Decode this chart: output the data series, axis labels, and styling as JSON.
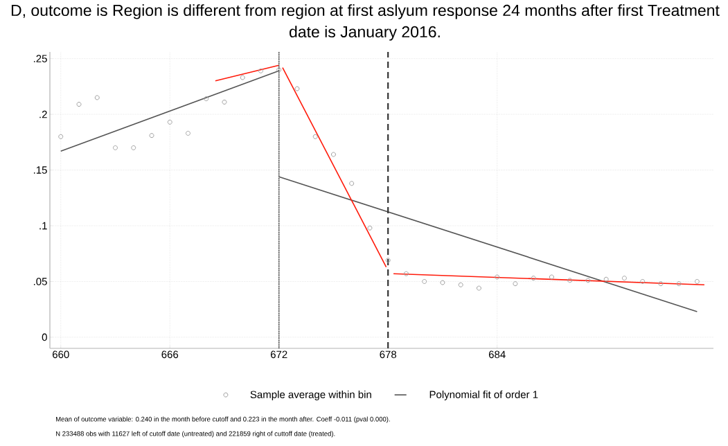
{
  "chart_data": {
    "type": "scatter",
    "title": "D, outcome is Region is different from region at first aslyum response 24 months after first Treatment date is January 2016.",
    "xlim": [
      659.4,
      695.9
    ],
    "ylim": [
      -0.01,
      0.256
    ],
    "xticks": [
      660,
      666,
      672,
      678,
      684
    ],
    "yticks": [
      {
        "value": 0,
        "label": "0"
      },
      {
        "value": 0.05,
        "label": ".05"
      },
      {
        "value": 0.1,
        "label": ".1"
      },
      {
        "value": 0.15,
        "label": ".15"
      },
      {
        "value": 0.2,
        "label": ".2"
      },
      {
        "value": 0.25,
        "label": ".25"
      }
    ],
    "grid": true,
    "legend": "bottom",
    "series": [
      {
        "name": "Sample average within bin",
        "marker": "circle",
        "color": "#a0a0a0",
        "x": [
          660,
          661,
          662,
          663,
          664,
          665,
          666,
          667,
          668,
          669,
          670,
          671,
          672,
          673,
          674,
          675,
          676,
          677,
          678,
          679,
          680,
          681,
          682,
          683,
          684,
          685,
          686,
          687,
          688,
          689,
          690,
          691,
          692,
          693,
          694,
          695
        ],
        "values": [
          0.18,
          0.209,
          0.215,
          0.17,
          0.17,
          0.181,
          0.193,
          0.183,
          0.214,
          0.211,
          0.233,
          0.239,
          0.24,
          0.223,
          0.18,
          0.164,
          0.138,
          0.098,
          0.069,
          0.057,
          0.05,
          0.049,
          0.047,
          0.044,
          0.054,
          0.048,
          0.053,
          0.054,
          0.051,
          0.051,
          0.052,
          0.053,
          0.05,
          0.048,
          0.048,
          0.05
        ]
      },
      {
        "name": "Polynomial fit of order 1",
        "type": "line",
        "color": "#555555",
        "x": [
          660,
          672
        ],
        "values": [
          0.167,
          0.239
        ]
      },
      {
        "type": "line",
        "color": "#555555",
        "x": [
          672,
          695
        ],
        "values": [
          0.144,
          0.023
        ]
      },
      {
        "type": "line",
        "color": "#ff1a0a",
        "x": [
          668.5,
          672
        ],
        "values": [
          0.23,
          0.244
        ]
      },
      {
        "type": "line",
        "color": "#ff1a0a",
        "x": [
          672.2,
          677.9
        ],
        "values": [
          0.242,
          0.063
        ]
      },
      {
        "type": "line",
        "color": "#ff1a0a",
        "x": [
          678.3,
          695.4
        ],
        "values": [
          0.057,
          0.047
        ]
      }
    ],
    "ref_lines": [
      {
        "axis": "x",
        "value": 672,
        "line_style": "dotted",
        "color": "#333333"
      },
      {
        "axis": "x",
        "value": 678,
        "line_style": "dashed",
        "color": "#333333"
      }
    ],
    "annotations": [
      "Mean of outcome variable: 0.240 in the month before cutoff and 0.223 in the month after. Coeff -0.011 (pval 0.000).",
      "N 233488 obs with 11627 left of cutoff date (untreated) and 221859 right of cuttoff date (treated)."
    ]
  }
}
